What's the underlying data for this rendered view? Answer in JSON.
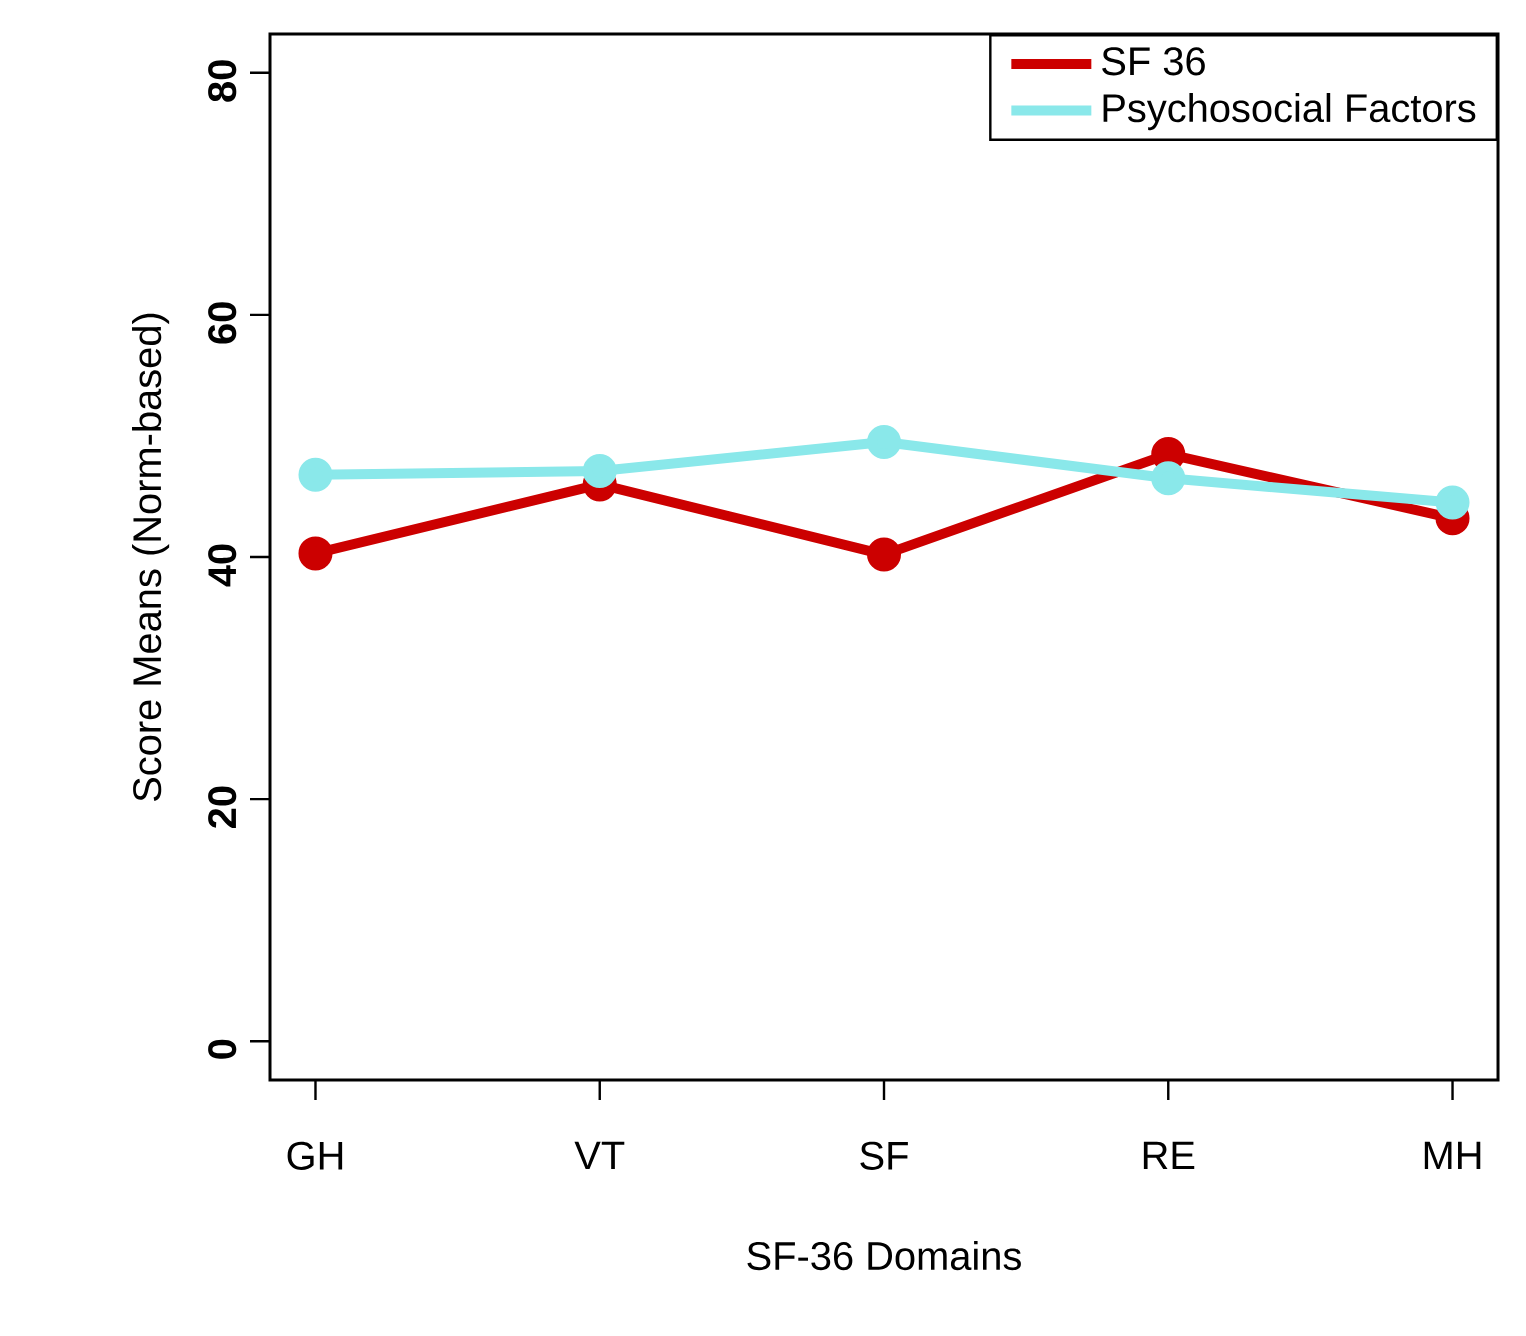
{
  "chart_data": {
    "type": "line",
    "xlabel": "SF-36 Domains",
    "ylabel": "Score Means (Norm-based)",
    "categories": [
      "GH",
      "VT",
      "SF",
      "RE",
      "MH"
    ],
    "series": [
      {
        "name": "SF 36",
        "color": "#cc0000",
        "values": [
          40.3,
          46.0,
          40.2,
          48.5,
          43.2
        ]
      },
      {
        "name": "Psychosocial Factors",
        "color": "#8ae8ea",
        "values": [
          46.8,
          47.1,
          49.5,
          46.5,
          44.5
        ]
      }
    ],
    "ylim": [
      -3.2,
      83.2
    ],
    "yticks": [
      0,
      20,
      40,
      60,
      80
    ],
    "grid": false,
    "legend": "top right",
    "marker": "circle",
    "line_style": "solid"
  }
}
